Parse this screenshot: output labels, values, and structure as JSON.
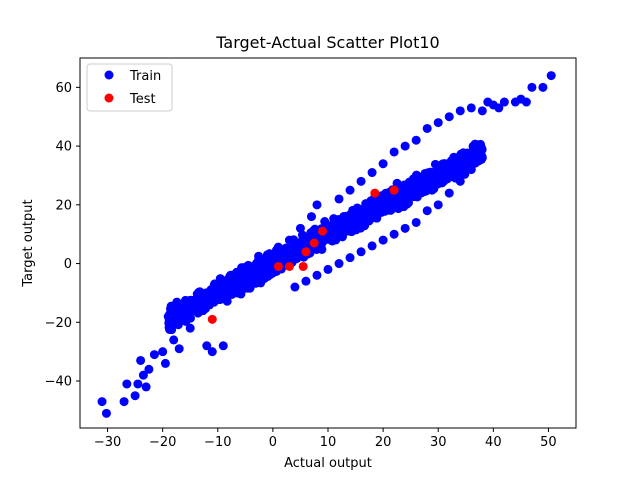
{
  "chart_data": {
    "type": "scatter",
    "title": "Target-Actual Scatter Plot10",
    "xlabel": "Actual output",
    "ylabel": "Target output",
    "xlim": [
      -35,
      55
    ],
    "ylim": [
      -56,
      70
    ],
    "xticks": [
      -30,
      -20,
      -10,
      0,
      10,
      20,
      30,
      40,
      50
    ],
    "yticks": [
      -40,
      -20,
      0,
      20,
      40,
      60
    ],
    "grid": false,
    "legend_position": "top-left",
    "colors": {
      "train": "#0000ff",
      "test": "#ff0000"
    },
    "series": [
      {
        "name": "Train",
        "color": "#0000ff",
        "band": {
          "x_range": [
            -19,
            38
          ],
          "slope": 1.0,
          "intercept": 0,
          "half_width": 6,
          "count": 1600
        },
        "points": [
          [
            -31.0,
            -47.0
          ],
          [
            -30.2,
            -51.0
          ],
          [
            -27.0,
            -47.0
          ],
          [
            -26.5,
            -41.0
          ],
          [
            -25.0,
            -45.0
          ],
          [
            -24.5,
            -41.0
          ],
          [
            -23.5,
            -38.0
          ],
          [
            -23.0,
            -42.0
          ],
          [
            -24.0,
            -33.0
          ],
          [
            -22.5,
            -36.0
          ],
          [
            -21.5,
            -31.0
          ],
          [
            -20.0,
            -30.0
          ],
          [
            -19.5,
            -34.0
          ],
          [
            -18.0,
            -26.0
          ],
          [
            -17.0,
            -29.0
          ],
          [
            -15.0,
            -22.0
          ],
          [
            -13.0,
            -16.0
          ],
          [
            -12.0,
            -28.0
          ],
          [
            -11.0,
            -30.0
          ],
          [
            -9.0,
            -28.0
          ],
          [
            -12.5,
            -15.0
          ],
          [
            -11.5,
            -13.0
          ],
          [
            -8.0,
            -8.0
          ],
          [
            -5.0,
            -4.0
          ],
          [
            -3.0,
            0.0
          ],
          [
            -1.0,
            3.0
          ],
          [
            1.0,
            5.0
          ],
          [
            3.0,
            8.0
          ],
          [
            5.0,
            12.0
          ],
          [
            7.0,
            16.0
          ],
          [
            8.0,
            20.0
          ],
          [
            12.0,
            22.0
          ],
          [
            14.0,
            25.0
          ],
          [
            16.0,
            28.0
          ],
          [
            18.0,
            31.0
          ],
          [
            20.0,
            34.0
          ],
          [
            22.0,
            38.0
          ],
          [
            24.0,
            40.0
          ],
          [
            26.0,
            42.0
          ],
          [
            28.0,
            46.0
          ],
          [
            30.0,
            48.0
          ],
          [
            32.0,
            50.0
          ],
          [
            34.0,
            52.0
          ],
          [
            36.0,
            53.0
          ],
          [
            38.0,
            52.0
          ],
          [
            39.0,
            55.0
          ],
          [
            40.0,
            54.0
          ],
          [
            41.0,
            53.0
          ],
          [
            42.0,
            55.0
          ],
          [
            44.0,
            55.0
          ],
          [
            45.0,
            56.0
          ],
          [
            46.0,
            55.0
          ],
          [
            47.0,
            60.0
          ],
          [
            49.0,
            60.0
          ],
          [
            50.5,
            64.0
          ],
          [
            30.0,
            20.0
          ],
          [
            32.0,
            24.0
          ],
          [
            34.0,
            28.0
          ],
          [
            36.0,
            32.0
          ],
          [
            38.0,
            36.0
          ],
          [
            28.0,
            18.0
          ],
          [
            26.0,
            14.0
          ],
          [
            24.0,
            12.0
          ],
          [
            22.0,
            10.0
          ],
          [
            20.0,
            8.0
          ],
          [
            18.0,
            6.0
          ],
          [
            16.0,
            4.0
          ],
          [
            14.0,
            2.0
          ],
          [
            12.0,
            0.0
          ],
          [
            10.0,
            -2.0
          ],
          [
            8.0,
            -4.0
          ],
          [
            6.0,
            -6.0
          ],
          [
            4.0,
            -8.0
          ]
        ]
      },
      {
        "name": "Test",
        "color": "#ff0000",
        "points": [
          [
            -11.0,
            -19.0
          ],
          [
            1.0,
            -1.0
          ],
          [
            3.0,
            -1.0
          ],
          [
            5.5,
            -1.0
          ],
          [
            6.0,
            4.0
          ],
          [
            7.5,
            7.0
          ],
          [
            9.0,
            11.0
          ],
          [
            18.5,
            24.0
          ],
          [
            22.0,
            25.0
          ]
        ]
      }
    ]
  }
}
